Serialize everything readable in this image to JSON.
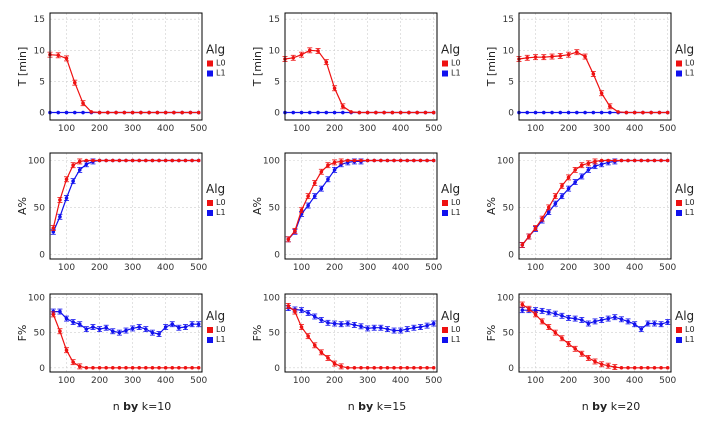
{
  "colors": {
    "L0": "#ee1111",
    "L1": "#1111ee"
  },
  "footers": [
    {
      "prefix": "n ",
      "bold": "by",
      "suffix": " k=10"
    },
    {
      "prefix": "n ",
      "bold": "by",
      "suffix": " k=15"
    },
    {
      "prefix": "n ",
      "bold": "by",
      "suffix": " k=20"
    }
  ],
  "chart_data": [
    {
      "id": "T-k10",
      "type": "line",
      "ylabel": "T [min]",
      "legend_title": "Alg",
      "xlim": [
        50,
        510
      ],
      "ylim": [
        -1.2,
        16
      ],
      "xticks": [
        100,
        200,
        300,
        400,
        500
      ],
      "yticks": [
        0,
        5,
        10,
        15
      ],
      "x": [
        50,
        75,
        100,
        125,
        150,
        175,
        200,
        225,
        250,
        275,
        300,
        325,
        350,
        375,
        400,
        425,
        450,
        475,
        500
      ],
      "series": [
        {
          "name": "L0",
          "values": [
            9.3,
            9.2,
            8.7,
            4.8,
            1.5,
            0.1,
            0,
            0,
            0,
            0,
            0,
            0,
            0,
            0,
            0,
            0,
            0,
            0,
            0
          ]
        },
        {
          "name": "L1",
          "values": [
            0,
            0,
            0,
            0,
            0,
            0,
            0,
            0,
            0,
            0,
            0,
            0,
            0,
            0,
            0,
            0,
            0,
            0,
            0
          ]
        }
      ]
    },
    {
      "id": "T-k15",
      "type": "line",
      "ylabel": "T [min]",
      "legend_title": "Alg",
      "xlim": [
        50,
        510
      ],
      "ylim": [
        -1.2,
        16
      ],
      "xticks": [
        100,
        200,
        300,
        400,
        500
      ],
      "yticks": [
        0,
        5,
        10,
        15
      ],
      "x": [
        50,
        75,
        100,
        125,
        150,
        175,
        200,
        225,
        250,
        275,
        300,
        325,
        350,
        375,
        400,
        425,
        450,
        475,
        500
      ],
      "series": [
        {
          "name": "L0",
          "values": [
            8.6,
            8.8,
            9.3,
            10.0,
            9.9,
            8.1,
            3.9,
            1.0,
            0.1,
            0,
            0,
            0,
            0,
            0,
            0,
            0,
            0,
            0,
            0
          ]
        },
        {
          "name": "L1",
          "values": [
            0,
            0,
            0,
            0,
            0,
            0,
            0,
            0,
            0,
            0,
            0,
            0,
            0,
            0,
            0,
            0,
            0,
            0,
            0
          ]
        }
      ]
    },
    {
      "id": "T-k20",
      "type": "line",
      "ylabel": "T [min]",
      "legend_title": "Alg",
      "xlim": [
        50,
        510
      ],
      "ylim": [
        -1.2,
        16
      ],
      "xticks": [
        100,
        200,
        300,
        400,
        500
      ],
      "yticks": [
        0,
        5,
        10,
        15
      ],
      "x": [
        50,
        75,
        100,
        125,
        150,
        175,
        200,
        225,
        250,
        275,
        300,
        325,
        350,
        375,
        400,
        425,
        450,
        475,
        500
      ],
      "series": [
        {
          "name": "L0",
          "values": [
            8.6,
            8.8,
            8.9,
            8.9,
            9.0,
            9.1,
            9.3,
            9.7,
            9.0,
            6.2,
            3.1,
            1.0,
            0.1,
            0,
            0,
            0,
            0,
            0,
            0
          ]
        },
        {
          "name": "L1",
          "values": [
            0,
            0,
            0,
            0,
            0,
            0,
            0,
            0,
            0,
            0,
            0,
            0,
            0,
            0,
            0,
            0,
            0,
            0,
            0
          ]
        }
      ]
    },
    {
      "id": "A-k10",
      "type": "line",
      "ylabel": "A%",
      "legend_title": "Alg",
      "xlim": [
        50,
        510
      ],
      "ylim": [
        -5,
        108
      ],
      "xticks": [
        100,
        200,
        300,
        400,
        500
      ],
      "yticks": [
        0,
        50,
        100
      ],
      "x": [
        60,
        80,
        100,
        120,
        140,
        160,
        180,
        200,
        220,
        240,
        260,
        280,
        300,
        320,
        340,
        360,
        380,
        400,
        420,
        440,
        460,
        480,
        500
      ],
      "series": [
        {
          "name": "L0",
          "values": [
            28,
            58,
            80,
            95,
            99,
            100,
            100,
            100,
            100,
            100,
            100,
            100,
            100,
            100,
            100,
            100,
            100,
            100,
            100,
            100,
            100,
            100,
            100
          ]
        },
        {
          "name": "L1",
          "values": [
            24,
            40,
            60,
            78,
            90,
            96,
            99,
            100,
            100,
            100,
            100,
            100,
            100,
            100,
            100,
            100,
            100,
            100,
            100,
            100,
            100,
            100,
            100
          ]
        }
      ]
    },
    {
      "id": "A-k15",
      "type": "line",
      "ylabel": "A%",
      "legend_title": "Alg",
      "xlim": [
        50,
        510
      ],
      "ylim": [
        -5,
        108
      ],
      "xticks": [
        100,
        200,
        300,
        400,
        500
      ],
      "yticks": [
        0,
        50,
        100
      ],
      "x": [
        60,
        80,
        100,
        120,
        140,
        160,
        180,
        200,
        220,
        240,
        260,
        280,
        300,
        320,
        340,
        360,
        380,
        400,
        420,
        440,
        460,
        480,
        500
      ],
      "series": [
        {
          "name": "L0",
          "values": [
            16,
            25,
            47,
            62,
            76,
            88,
            95,
            98,
            99,
            100,
            100,
            100,
            100,
            100,
            100,
            100,
            100,
            100,
            100,
            100,
            100,
            100,
            100
          ]
        },
        {
          "name": "L1",
          "values": [
            16,
            24,
            43,
            52,
            62,
            70,
            80,
            90,
            96,
            98,
            99,
            99,
            100,
            100,
            100,
            100,
            100,
            100,
            100,
            100,
            100,
            100,
            100
          ]
        }
      ]
    },
    {
      "id": "A-k20",
      "type": "line",
      "ylabel": "A%",
      "legend_title": "Alg",
      "xlim": [
        50,
        510
      ],
      "ylim": [
        -5,
        108
      ],
      "xticks": [
        100,
        200,
        300,
        400,
        500
      ],
      "yticks": [
        0,
        50,
        100
      ],
      "x": [
        60,
        80,
        100,
        120,
        140,
        160,
        180,
        200,
        220,
        240,
        260,
        280,
        300,
        320,
        340,
        360,
        380,
        400,
        420,
        440,
        460,
        480,
        500
      ],
      "series": [
        {
          "name": "L0",
          "values": [
            10,
            19,
            28,
            38,
            50,
            62,
            73,
            82,
            90,
            95,
            97,
            99,
            100,
            100,
            100,
            100,
            100,
            100,
            100,
            100,
            100,
            100,
            100
          ]
        },
        {
          "name": "L1",
          "values": [
            10,
            19,
            27,
            36,
            45,
            54,
            62,
            70,
            77,
            83,
            90,
            94,
            96,
            98,
            99,
            100,
            100,
            100,
            100,
            100,
            100,
            100,
            100
          ]
        }
      ]
    },
    {
      "id": "F-k10",
      "type": "line",
      "ylabel": "F%",
      "legend_title": "Alg",
      "xlim": [
        50,
        510
      ],
      "ylim": [
        -6,
        105
      ],
      "xticks": [
        100,
        200,
        300,
        400,
        500
      ],
      "yticks": [
        0,
        50,
        100
      ],
      "x": [
        60,
        80,
        100,
        120,
        140,
        160,
        180,
        200,
        220,
        240,
        260,
        280,
        300,
        320,
        340,
        360,
        380,
        400,
        420,
        440,
        460,
        480,
        500
      ],
      "series": [
        {
          "name": "L0",
          "values": [
            76,
            52,
            25,
            8,
            2,
            0,
            0,
            0,
            0,
            0,
            0,
            0,
            0,
            0,
            0,
            0,
            0,
            0,
            0,
            0,
            0,
            0,
            0
          ]
        },
        {
          "name": "L1",
          "values": [
            80,
            80,
            70,
            65,
            62,
            55,
            58,
            55,
            57,
            52,
            50,
            53,
            56,
            58,
            55,
            50,
            48,
            58,
            62,
            57,
            58,
            62,
            62
          ]
        }
      ]
    },
    {
      "id": "F-k15",
      "type": "line",
      "ylabel": "F%",
      "legend_title": "Alg",
      "xlim": [
        50,
        510
      ],
      "ylim": [
        -6,
        105
      ],
      "xticks": [
        100,
        200,
        300,
        400,
        500
      ],
      "yticks": [
        0,
        50,
        100
      ],
      "x": [
        60,
        80,
        100,
        120,
        140,
        160,
        180,
        200,
        220,
        240,
        260,
        280,
        300,
        320,
        340,
        360,
        380,
        400,
        420,
        440,
        460,
        480,
        500
      ],
      "series": [
        {
          "name": "L0",
          "values": [
            88,
            80,
            58,
            45,
            32,
            22,
            14,
            6,
            2,
            0,
            0,
            0,
            0,
            0,
            0,
            0,
            0,
            0,
            0,
            0,
            0,
            0,
            0
          ]
        },
        {
          "name": "L1",
          "values": [
            85,
            83,
            82,
            78,
            73,
            68,
            64,
            63,
            62,
            63,
            61,
            59,
            56,
            57,
            57,
            55,
            53,
            53,
            55,
            57,
            58,
            60,
            63
          ]
        }
      ]
    },
    {
      "id": "F-k20",
      "type": "line",
      "ylabel": "F%",
      "legend_title": "Alg",
      "xlim": [
        50,
        510
      ],
      "ylim": [
        -6,
        105
      ],
      "xticks": [
        100,
        200,
        300,
        400,
        500
      ],
      "yticks": [
        0,
        50,
        100
      ],
      "x": [
        60,
        80,
        100,
        120,
        140,
        160,
        180,
        200,
        220,
        240,
        260,
        280,
        300,
        320,
        340,
        360,
        380,
        400,
        420,
        440,
        460,
        480,
        500
      ],
      "series": [
        {
          "name": "L0",
          "values": [
            90,
            84,
            76,
            66,
            58,
            50,
            42,
            34,
            27,
            20,
            14,
            9,
            5,
            3,
            1,
            0,
            0,
            0,
            0,
            0,
            0,
            0,
            0
          ]
        },
        {
          "name": "L1",
          "values": [
            82,
            82,
            82,
            81,
            79,
            77,
            74,
            71,
            70,
            68,
            63,
            66,
            68,
            70,
            72,
            69,
            66,
            62,
            55,
            63,
            63,
            62,
            65
          ]
        }
      ]
    }
  ]
}
